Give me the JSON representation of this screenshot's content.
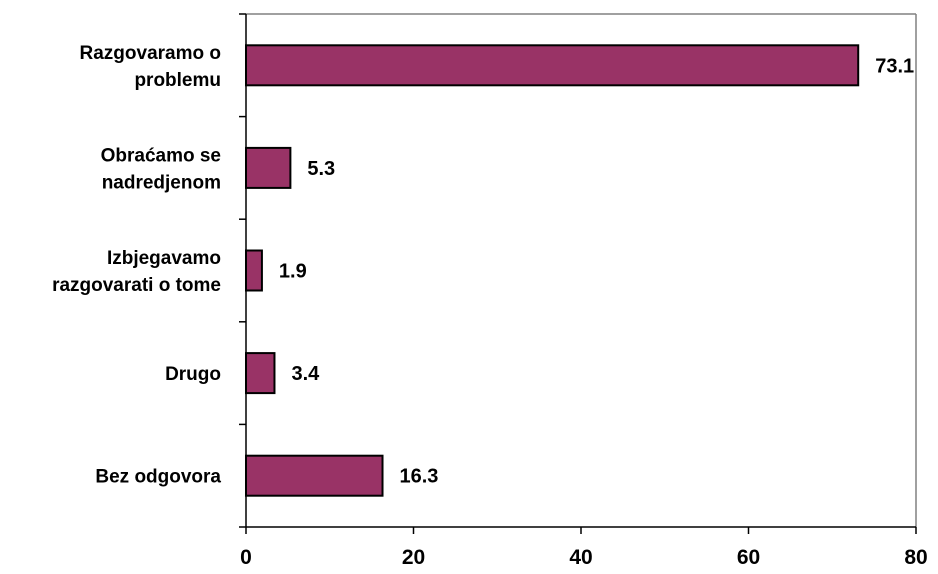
{
  "chart_data": {
    "type": "bar",
    "orientation": "horizontal",
    "title": "",
    "xlabel": "",
    "ylabel": "",
    "categories": [
      [
        "Razgovaramo o",
        "problemu"
      ],
      [
        "Obraćamo se",
        "nadredjenom"
      ],
      [
        "Izbjegavamo",
        "razgovarati o tome"
      ],
      [
        "Drugo"
      ],
      [
        "Bez odgovora"
      ]
    ],
    "values": [
      73.1,
      5.3,
      1.9,
      3.4,
      16.3
    ],
    "value_labels": [
      "73.1",
      "5.3",
      "1.9",
      "3.4",
      "16.3"
    ],
    "xlim": [
      0,
      80
    ],
    "x_ticks": [
      0,
      20,
      40,
      60,
      80
    ],
    "grid": false,
    "legend": "none",
    "colors": {
      "bar_fill": "#993366",
      "bar_stroke": "#000000",
      "axis": "#000000",
      "plot_border": "#808080"
    }
  }
}
